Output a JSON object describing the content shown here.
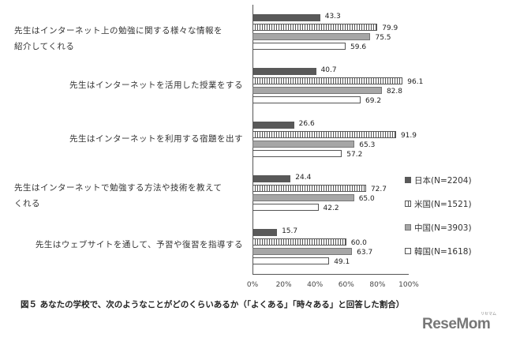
{
  "chart_data": {
    "type": "bar",
    "orientation": "horizontal",
    "title": "図５ あなたの学校で、次のようなことがどのくらいあるか（「よくある」「時々ある」と回答した割合）",
    "xlabel": "",
    "ylabel": "",
    "xlim": [
      0,
      100
    ],
    "x_ticks": [
      "0%",
      "20%",
      "40%",
      "60%",
      "80%",
      "100%"
    ],
    "grid": false,
    "legend_position": "right",
    "categories": [
      "先生はインターネット上の勉強に関する様々な情報を紹介してくれる",
      "先生はインターネットを活用した授業をする",
      "先生はインターネットを利用する宿題を出す",
      "先生はインターネットで勉強する方法や技術を教えてくれる",
      "先生はウェブサイトを通して、予習や復習を指導する"
    ],
    "series": [
      {
        "name": "日本(N=2204)",
        "key": "japan",
        "color": "#595959",
        "values": [
          43.3,
          40.7,
          26.6,
          24.4,
          15.7
        ],
        "labels": [
          "43.3",
          "40.7",
          "26.6",
          "24.4",
          "15.7"
        ]
      },
      {
        "name": "米国(N=1521)",
        "key": "usa",
        "color": "#ffffff",
        "pattern": "vertical-stripes",
        "values": [
          79.9,
          96.1,
          91.9,
          72.7,
          60.0
        ],
        "labels": [
          "79.9",
          "96.1",
          "91.9",
          "72.7",
          "60.0"
        ]
      },
      {
        "name": "中国(N=3903)",
        "key": "china",
        "color": "#a6a6a6",
        "values": [
          75.5,
          82.8,
          65.3,
          65.0,
          63.7
        ],
        "labels": [
          "75.5",
          "82.8",
          "65.3",
          "65.0",
          "63.7"
        ]
      },
      {
        "name": "韓国(N=1618)",
        "key": "korea",
        "color": "#ffffff",
        "values": [
          59.6,
          69.2,
          57.2,
          42.2,
          49.1
        ],
        "labels": [
          "59.6",
          "69.2",
          "57.2",
          "42.2",
          "49.1"
        ]
      }
    ]
  },
  "labels": {
    "cat0_line1": "先生はインターネット上の勉強に関する様々な情報を",
    "cat0_line2": "紹介してくれる",
    "cat1": "先生はインターネットを活用した授業をする",
    "cat2": "先生はインターネットを利用する宿題を出す",
    "cat3_line1": "先生はインターネットで勉強する方法や技術を教えて",
    "cat3_line2": "くれる",
    "cat4": "先生はウェブサイトを通して、予習や復習を指導する"
  },
  "caption": "図５ あなたの学校で、次のようなことがどのくらいあるか（「よくある」「時々ある」と回答した割合）",
  "logo": {
    "text": "ReseMom",
    "sub": "リセマム"
  }
}
